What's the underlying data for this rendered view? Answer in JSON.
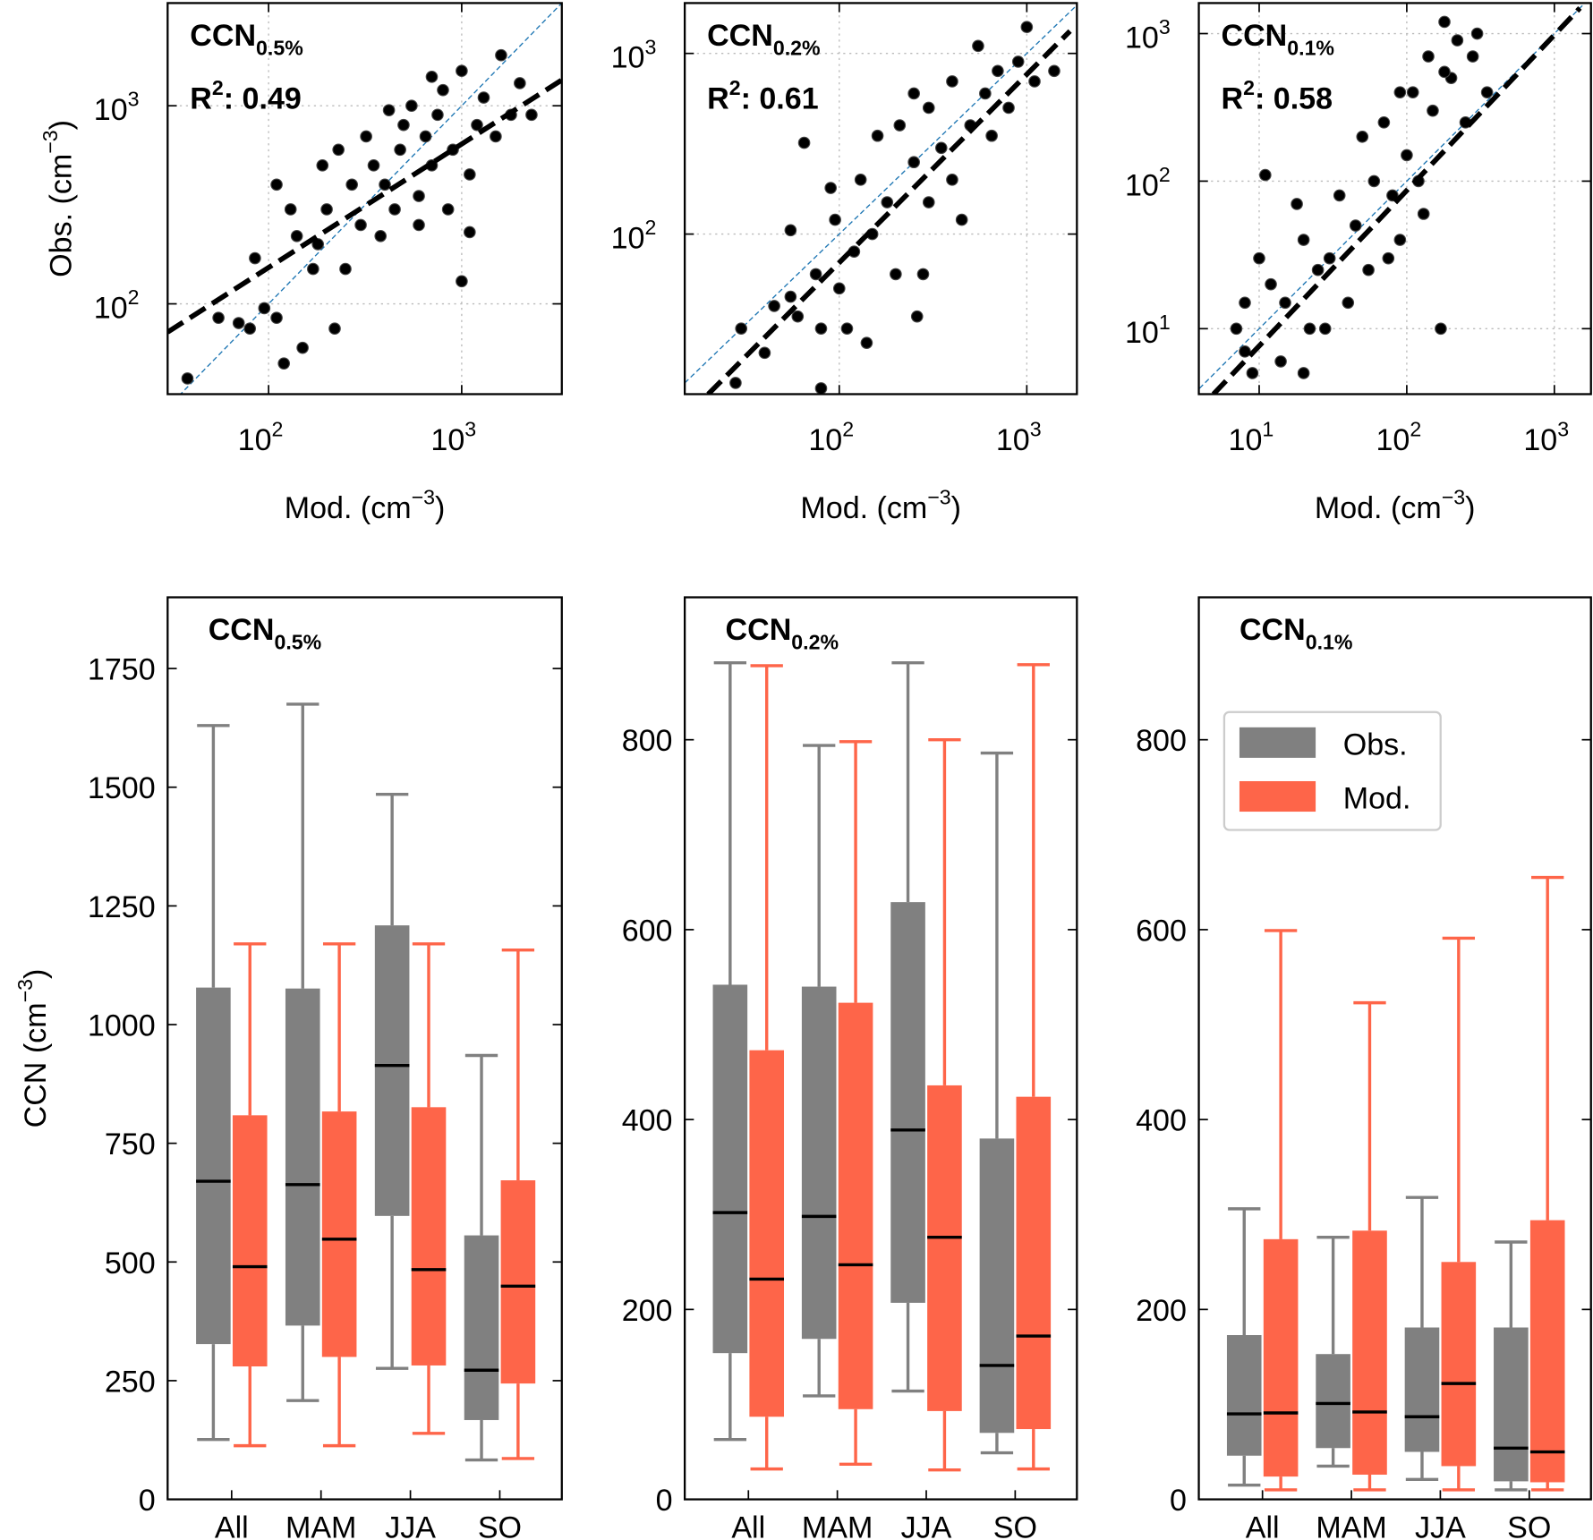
{
  "chart_data": [
    {
      "type": "scatter",
      "title": "CCN",
      "title_sub": "0.5%",
      "annotation": {
        "text": "R",
        "sup": "2",
        "rest": ": 0.49"
      },
      "xlabel": {
        "text": "Mod. (cm",
        "sup": "−3",
        "rest": ")"
      },
      "ylabel": {
        "text": "Obs. (cm",
        "sup": "−3",
        "rest": ")"
      },
      "log_x": true,
      "log_y": true,
      "grid": true,
      "color": "#000000",
      "identity_line": true,
      "xlim": [
        30,
        3300
      ],
      "ylim": [
        35,
        3300
      ],
      "xticks": [
        {
          "value": 100,
          "label": "10",
          "exponent": "2"
        },
        {
          "value": 1000,
          "label": "10",
          "exponent": "3"
        }
      ],
      "yticks": [
        {
          "value": 100,
          "label": "10",
          "exponent": "2"
        },
        {
          "value": 1000,
          "label": "10",
          "exponent": "3"
        }
      ],
      "fit": {
        "x": [
          30,
          3300
        ],
        "y": [
          72,
          1350
        ]
      },
      "x": [
        38,
        55,
        70,
        80,
        85,
        95,
        110,
        110,
        120,
        130,
        140,
        150,
        170,
        180,
        190,
        200,
        220,
        230,
        250,
        270,
        300,
        320,
        350,
        380,
        400,
        420,
        450,
        480,
        500,
        550,
        600,
        650,
        700,
        750,
        800,
        850,
        900,
        1000,
        1000,
        1100,
        1200,
        1300,
        1500,
        1600,
        1800,
        2000,
        2300,
        700,
        600,
        1100
      ],
      "y": [
        42,
        85,
        80,
        75,
        170,
        95,
        85,
        400,
        50,
        300,
        220,
        60,
        150,
        200,
        500,
        300,
        75,
        600,
        150,
        400,
        250,
        700,
        500,
        220,
        400,
        950,
        300,
        600,
        800,
        1000,
        350,
        700,
        500,
        900,
        1200,
        300,
        600,
        1500,
        130,
        230,
        800,
        1100,
        700,
        1800,
        900,
        1300,
        900,
        1400,
        250,
        450
      ]
    },
    {
      "type": "scatter",
      "title": "CCN",
      "title_sub": "0.2%",
      "annotation": {
        "text": "R",
        "sup": "2",
        "rest": ": 0.61"
      },
      "xlabel": {
        "text": "Mod. (cm",
        "sup": "−3",
        "rest": ")"
      },
      "log_x": true,
      "log_y": true,
      "grid": true,
      "color": "#000000",
      "identity_line": true,
      "xlim": [
        15,
        1850
      ],
      "ylim": [
        13,
        1900
      ],
      "xticks": [
        {
          "value": 100,
          "label": "10",
          "exponent": "2"
        },
        {
          "value": 1000,
          "label": "10",
          "exponent": "3"
        }
      ],
      "yticks": [
        {
          "value": 100,
          "label": "10",
          "exponent": "2"
        },
        {
          "value": 1000,
          "label": "10",
          "exponent": "3"
        }
      ],
      "fit": {
        "x": [
          20,
          1700
        ],
        "y": [
          13,
          1330
        ]
      },
      "x": [
        28,
        30,
        40,
        45,
        55,
        55,
        60,
        65,
        75,
        80,
        80,
        90,
        95,
        100,
        110,
        120,
        130,
        140,
        150,
        160,
        180,
        200,
        210,
        250,
        260,
        280,
        300,
        350,
        400,
        400,
        450,
        500,
        550,
        600,
        650,
        700,
        800,
        900,
        1000,
        1100,
        1400,
        300,
        250
      ],
      "y": [
        15,
        30,
        22,
        40,
        105,
        45,
        35,
        320,
        60,
        14,
        30,
        180,
        120,
        50,
        30,
        80,
        200,
        25,
        100,
        350,
        150,
        60,
        400,
        250,
        35,
        60,
        500,
        300,
        200,
        700,
        120,
        400,
        1100,
        600,
        350,
        800,
        500,
        900,
        1400,
        700,
        800,
        150,
        600
      ]
    },
    {
      "type": "scatter",
      "title": "CCN",
      "title_sub": "0.1%",
      "annotation": {
        "text": "R",
        "sup": "2",
        "rest": ": 0.58"
      },
      "xlabel": {
        "text": "Mod. (cm",
        "sup": "−3",
        "rest": ")"
      },
      "log_x": true,
      "log_y": true,
      "grid": true,
      "color": "#000000",
      "identity_line": true,
      "xlim": [
        3.9,
        1770
      ],
      "ylim": [
        3.6,
        1610
      ],
      "xticks": [
        {
          "value": 10,
          "label": "10",
          "exponent": "1"
        },
        {
          "value": 100,
          "label": "10",
          "exponent": "2"
        },
        {
          "value": 1000,
          "label": "10",
          "exponent": "3"
        }
      ],
      "yticks": [
        {
          "value": 10,
          "label": "10",
          "exponent": "1"
        },
        {
          "value": 100,
          "label": "10",
          "exponent": "2"
        },
        {
          "value": 1000,
          "label": "10",
          "exponent": "3"
        }
      ],
      "fit": {
        "x": [
          4.9,
          1490
        ],
        "y": [
          3.6,
          1490
        ]
      },
      "x": [
        7,
        8,
        8,
        9,
        10,
        11,
        12,
        14,
        15,
        18,
        20,
        20,
        22,
        25,
        28,
        30,
        35,
        40,
        45,
        50,
        55,
        60,
        70,
        75,
        80,
        90,
        100,
        110,
        120,
        130,
        140,
        150,
        170,
        180,
        200,
        220,
        250,
        280,
        300,
        350,
        180,
        90
      ],
      "y": [
        10,
        15,
        7,
        5,
        30,
        110,
        20,
        6,
        15,
        70,
        5,
        40,
        10,
        25,
        10,
        30,
        80,
        15,
        50,
        200,
        25,
        100,
        250,
        30,
        80,
        40,
        150,
        400,
        100,
        60,
        700,
        300,
        10,
        1200,
        500,
        900,
        250,
        700,
        1000,
        400,
        550,
        400
      ]
    },
    {
      "type": "box",
      "title": "CCN",
      "title_sub": "0.5%",
      "ylabel": {
        "text": "CCN (cm",
        "sup": "−3",
        "rest": ")"
      },
      "categories": [
        "All",
        "MAM",
        "JJA",
        "SO"
      ],
      "median_color": "#000000",
      "ylim": [
        0,
        1900
      ],
      "yticks": [
        0,
        250,
        500,
        750,
        1000,
        1250,
        1500,
        1750
      ],
      "series": [
        {
          "name": "Obs.",
          "color": "#808080",
          "values": [
            {
              "whislo": 126,
              "q1": 327,
              "med": 670,
              "q3": 1078,
              "whishi": 1630
            },
            {
              "whislo": 208,
              "q1": 366,
              "med": 663,
              "q3": 1076,
              "whishi": 1675
            },
            {
              "whislo": 276,
              "q1": 597,
              "med": 914,
              "q3": 1209,
              "whishi": 1485
            },
            {
              "whislo": 83,
              "q1": 167,
              "med": 272,
              "q3": 556,
              "whishi": 935
            }
          ]
        },
        {
          "name": "Mod.",
          "color": "#fe6549",
          "values": [
            {
              "whislo": 113,
              "q1": 280,
              "med": 490,
              "q3": 809,
              "whishi": 1170
            },
            {
              "whislo": 113,
              "q1": 300,
              "med": 548,
              "q3": 817,
              "whishi": 1170
            },
            {
              "whislo": 139,
              "q1": 282,
              "med": 484,
              "q3": 826,
              "whishi": 1170
            },
            {
              "whislo": 86,
              "q1": 244,
              "med": 449,
              "q3": 672,
              "whishi": 1157
            }
          ]
        }
      ]
    },
    {
      "type": "box",
      "title": "CCN",
      "title_sub": "0.2%",
      "categories": [
        "All",
        "MAM",
        "JJA",
        "SO"
      ],
      "median_color": "#000000",
      "ylim": [
        0,
        950
      ],
      "yticks": [
        0,
        200,
        400,
        600,
        800
      ],
      "series": [
        {
          "name": "Obs.",
          "color": "#808080",
          "values": [
            {
              "whislo": 63,
              "q1": 154,
              "med": 302,
              "q3": 542,
              "whishi": 881
            },
            {
              "whislo": 109,
              "q1": 169,
              "med": 298,
              "q3": 540,
              "whishi": 794
            },
            {
              "whislo": 114,
              "q1": 207,
              "med": 389,
              "q3": 629,
              "whishi": 881
            },
            {
              "whislo": 49,
              "q1": 70,
              "med": 141,
              "q3": 380,
              "whishi": 786
            }
          ]
        },
        {
          "name": "Mod.",
          "color": "#fe6549",
          "values": [
            {
              "whislo": 32,
              "q1": 87,
              "med": 232,
              "q3": 473,
              "whishi": 878
            },
            {
              "whislo": 37,
              "q1": 95,
              "med": 247,
              "q3": 523,
              "whishi": 798
            },
            {
              "whislo": 31,
              "q1": 93,
              "med": 276,
              "q3": 436,
              "whishi": 800
            },
            {
              "whislo": 32,
              "q1": 74,
              "med": 172,
              "q3": 424,
              "whishi": 879
            }
          ]
        }
      ]
    },
    {
      "type": "box",
      "title": "CCN",
      "title_sub": "0.1%",
      "legend": "upper right",
      "categories": [
        "All",
        "MAM",
        "JJA",
        "SO"
      ],
      "median_color": "#000000",
      "ylim": [
        0,
        950
      ],
      "yticks": [
        0,
        200,
        400,
        600,
        800
      ],
      "series": [
        {
          "name": "Obs.",
          "color": "#808080",
          "values": [
            {
              "whislo": 15,
              "q1": 46,
              "med": 90,
              "q3": 173,
              "whishi": 306
            },
            {
              "whislo": 35,
              "q1": 54,
              "med": 101,
              "q3": 153,
              "whishi": 276
            },
            {
              "whislo": 21,
              "q1": 50,
              "med": 87,
              "q3": 181,
              "whishi": 318
            },
            {
              "whislo": 10,
              "q1": 19,
              "med": 54,
              "q3": 181,
              "whishi": 271
            }
          ]
        },
        {
          "name": "Mod.",
          "color": "#fe6549",
          "values": [
            {
              "whislo": 10,
              "q1": 24,
              "med": 91,
              "q3": 274,
              "whishi": 599
            },
            {
              "whislo": 10,
              "q1": 26,
              "med": 92,
              "q3": 283,
              "whishi": 523
            },
            {
              "whislo": 10,
              "q1": 35,
              "med": 122,
              "q3": 250,
              "whishi": 591
            },
            {
              "whislo": 10,
              "q1": 18,
              "med": 50,
              "q3": 294,
              "whishi": 655
            }
          ]
        }
      ]
    }
  ]
}
